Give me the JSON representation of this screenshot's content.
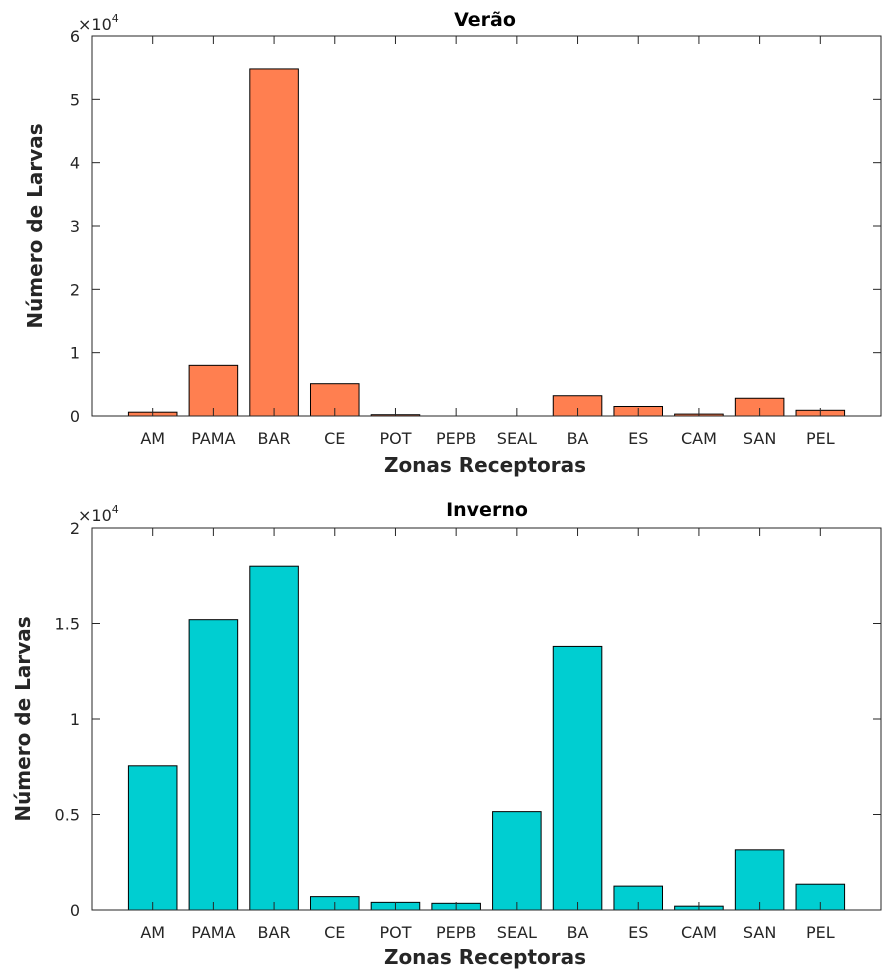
{
  "chart_data": [
    {
      "type": "bar",
      "title": "Verão",
      "xlabel": "Zonas Receptoras",
      "ylabel": "Número de Larvas",
      "exponent_label": "×10",
      "exponent_power": "4",
      "categories": [
        "AM",
        "PAMA",
        "BAR",
        "CE",
        "POT",
        "PEPB",
        "SEAL",
        "BA",
        "ES",
        "CAM",
        "SAN",
        "PEL"
      ],
      "values": [
        600,
        8000,
        54800,
        5100,
        200,
        0,
        0,
        3200,
        1500,
        300,
        2800,
        900
      ],
      "ylim": [
        0,
        60000
      ],
      "yticks": [
        0,
        10000,
        20000,
        30000,
        40000,
        50000,
        60000
      ],
      "ytick_labels": [
        "0",
        "1",
        "2",
        "3",
        "4",
        "5",
        "6"
      ],
      "bar_color": "#FF7F50",
      "grid": false
    },
    {
      "type": "bar",
      "title": "Inverno",
      "xlabel": "Zonas Receptoras",
      "ylabel": "Número de Larvas",
      "exponent_label": "×10",
      "exponent_power": "4",
      "categories": [
        "AM",
        "PAMA",
        "BAR",
        "CE",
        "POT",
        "PEPB",
        "SEAL",
        "BA",
        "ES",
        "CAM",
        "SAN",
        "PEL"
      ],
      "values": [
        7550,
        15200,
        18000,
        700,
        400,
        350,
        5150,
        13800,
        1250,
        200,
        3150,
        1350
      ],
      "ylim": [
        0,
        20000
      ],
      "yticks": [
        0,
        5000,
        10000,
        15000,
        20000
      ],
      "ytick_labels": [
        "0",
        "0.5",
        "1",
        "1.5",
        "2"
      ],
      "bar_color": "#00CED1",
      "grid": false
    }
  ]
}
